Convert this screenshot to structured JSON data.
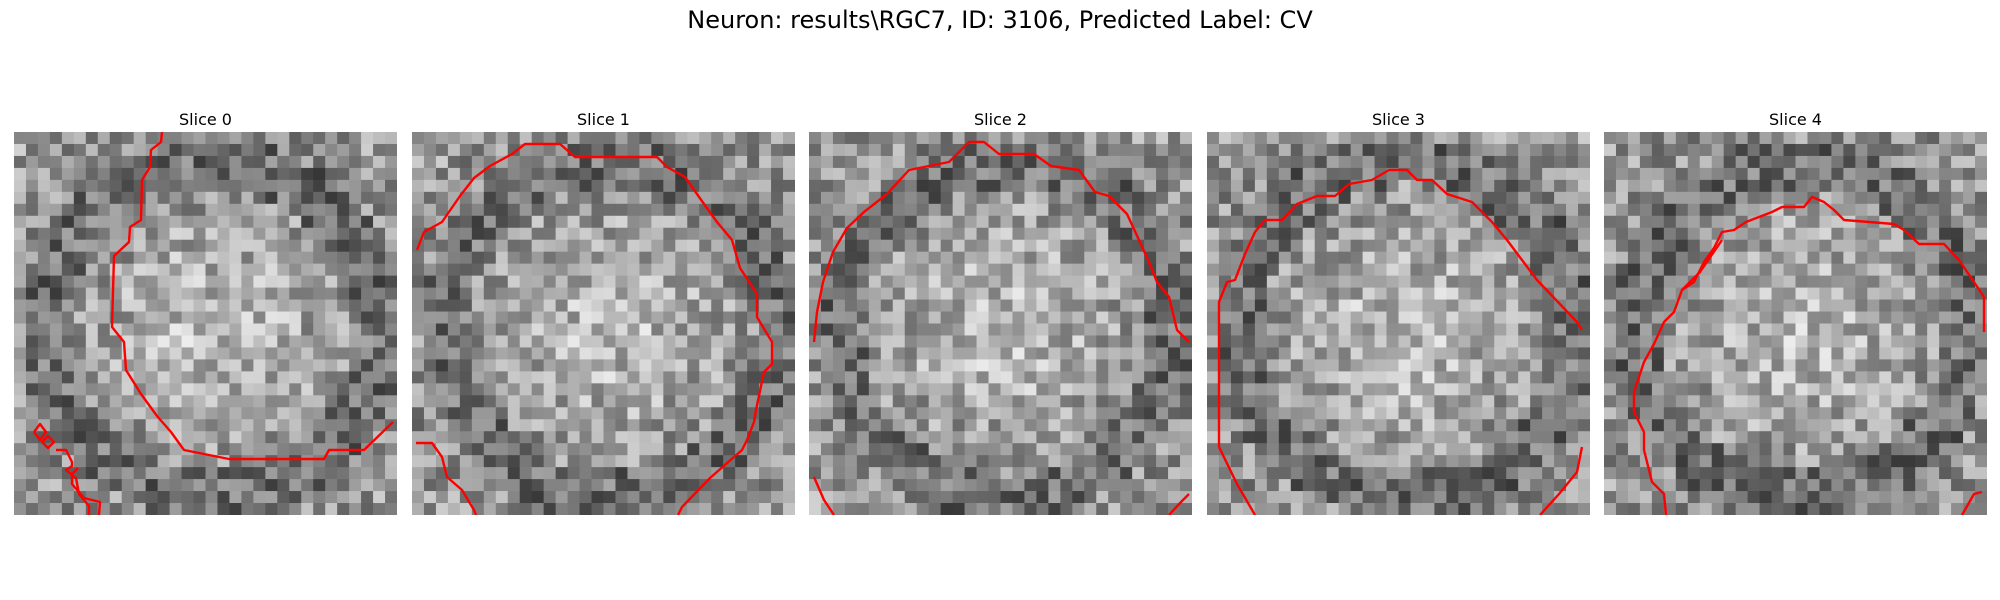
{
  "figure": {
    "title": "Neuron: results\\RGC7, ID: 3106, Predicted Label: CV"
  },
  "colors": {
    "contour": "#ff0000",
    "background": "#ffffff"
  },
  "slices": [
    {
      "title": "Slice 0",
      "seed": 11
    },
    {
      "title": "Slice 1",
      "seed": 23
    },
    {
      "title": "Slice 2",
      "seed": 37
    },
    {
      "title": "Slice 3",
      "seed": 51
    },
    {
      "title": "Slice 4",
      "seed": 67
    }
  ]
}
